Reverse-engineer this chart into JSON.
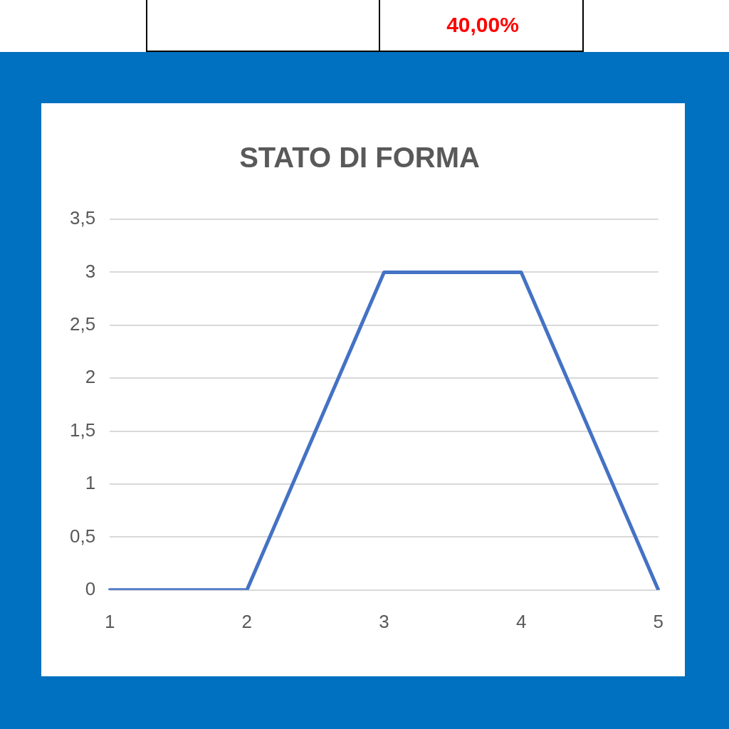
{
  "chart_data": {
    "type": "line",
    "title": "STATO DI FORMA",
    "categories": [
      "1",
      "2",
      "3",
      "4",
      "5"
    ],
    "series": [
      {
        "color": "#4472c4",
        "values": [
          0,
          0,
          3,
          3,
          0
        ]
      }
    ],
    "ylim": [
      0,
      3.5
    ],
    "yticks": [
      0,
      {
        "value": 0.5,
        "label": "0,5"
      },
      1,
      {
        "value": 1.5,
        "label": "1,5"
      },
      2,
      {
        "value": 2.5,
        "label": "2,5"
      },
      3,
      {
        "value": 3.5,
        "label": "3,5"
      }
    ],
    "grid": "y",
    "legend": false,
    "marker": "none",
    "line_style": "solid",
    "annotations": [
      "40,00%"
    ]
  }
}
